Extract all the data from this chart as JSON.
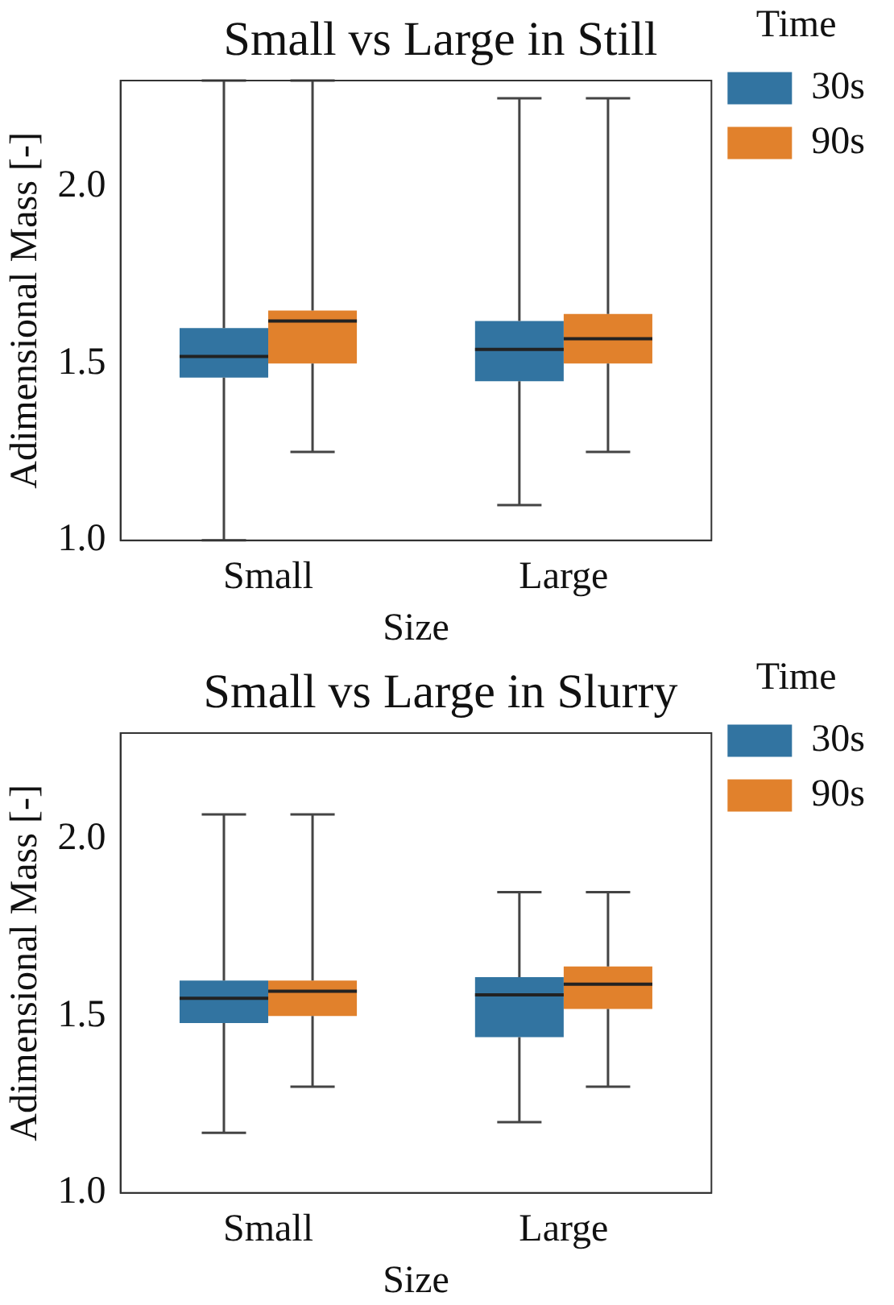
{
  "chart_data": [
    {
      "type": "box",
      "title": "Small vs Large in Still",
      "xlabel": "Size",
      "ylabel": "Adimensional Mass [-]",
      "legend_title": "Time",
      "legend": "right",
      "categories": [
        "Small",
        "Large"
      ],
      "ylim": [
        1.0,
        2.3
      ],
      "yticks": [
        {
          "value": 1.0,
          "label": "1.0"
        },
        {
          "value": 1.5,
          "label": "1.5"
        },
        {
          "value": 2.0,
          "label": "2.0"
        }
      ],
      "series": [
        {
          "name": "30s",
          "color": "#3274a1",
          "boxes": [
            {
              "low": 1.0,
              "q1": 1.46,
              "median": 1.52,
              "q3": 1.6,
              "high": 2.3
            },
            {
              "low": 1.1,
              "q1": 1.45,
              "median": 1.54,
              "q3": 1.62,
              "high": 2.25
            }
          ]
        },
        {
          "name": "90s",
          "color": "#e1812c",
          "boxes": [
            {
              "low": 1.25,
              "q1": 1.5,
              "median": 1.62,
              "q3": 1.65,
              "high": 2.3
            },
            {
              "low": 1.25,
              "q1": 1.5,
              "median": 1.57,
              "q3": 1.64,
              "high": 2.25
            }
          ]
        }
      ]
    },
    {
      "type": "box",
      "title": "Small vs Large in Slurry",
      "xlabel": "Size",
      "ylabel": "Adimensional Mass [-]",
      "legend_title": "Time",
      "legend": "right",
      "categories": [
        "Small",
        "Large"
      ],
      "ylim": [
        1.0,
        2.3
      ],
      "yticks": [
        {
          "value": 1.0,
          "label": "1.0"
        },
        {
          "value": 1.5,
          "label": "1.5"
        },
        {
          "value": 2.0,
          "label": "2.0"
        }
      ],
      "series": [
        {
          "name": "30s",
          "color": "#3274a1",
          "boxes": [
            {
              "low": 1.17,
              "q1": 1.48,
              "median": 1.55,
              "q3": 1.6,
              "high": 2.07
            },
            {
              "low": 1.2,
              "q1": 1.44,
              "median": 1.56,
              "q3": 1.61,
              "high": 1.85
            }
          ]
        },
        {
          "name": "90s",
          "color": "#e1812c",
          "boxes": [
            {
              "low": 1.3,
              "q1": 1.5,
              "median": 1.57,
              "q3": 1.6,
              "high": 2.07
            },
            {
              "low": 1.3,
              "q1": 1.52,
              "median": 1.59,
              "q3": 1.64,
              "high": 1.85
            }
          ]
        }
      ]
    }
  ]
}
